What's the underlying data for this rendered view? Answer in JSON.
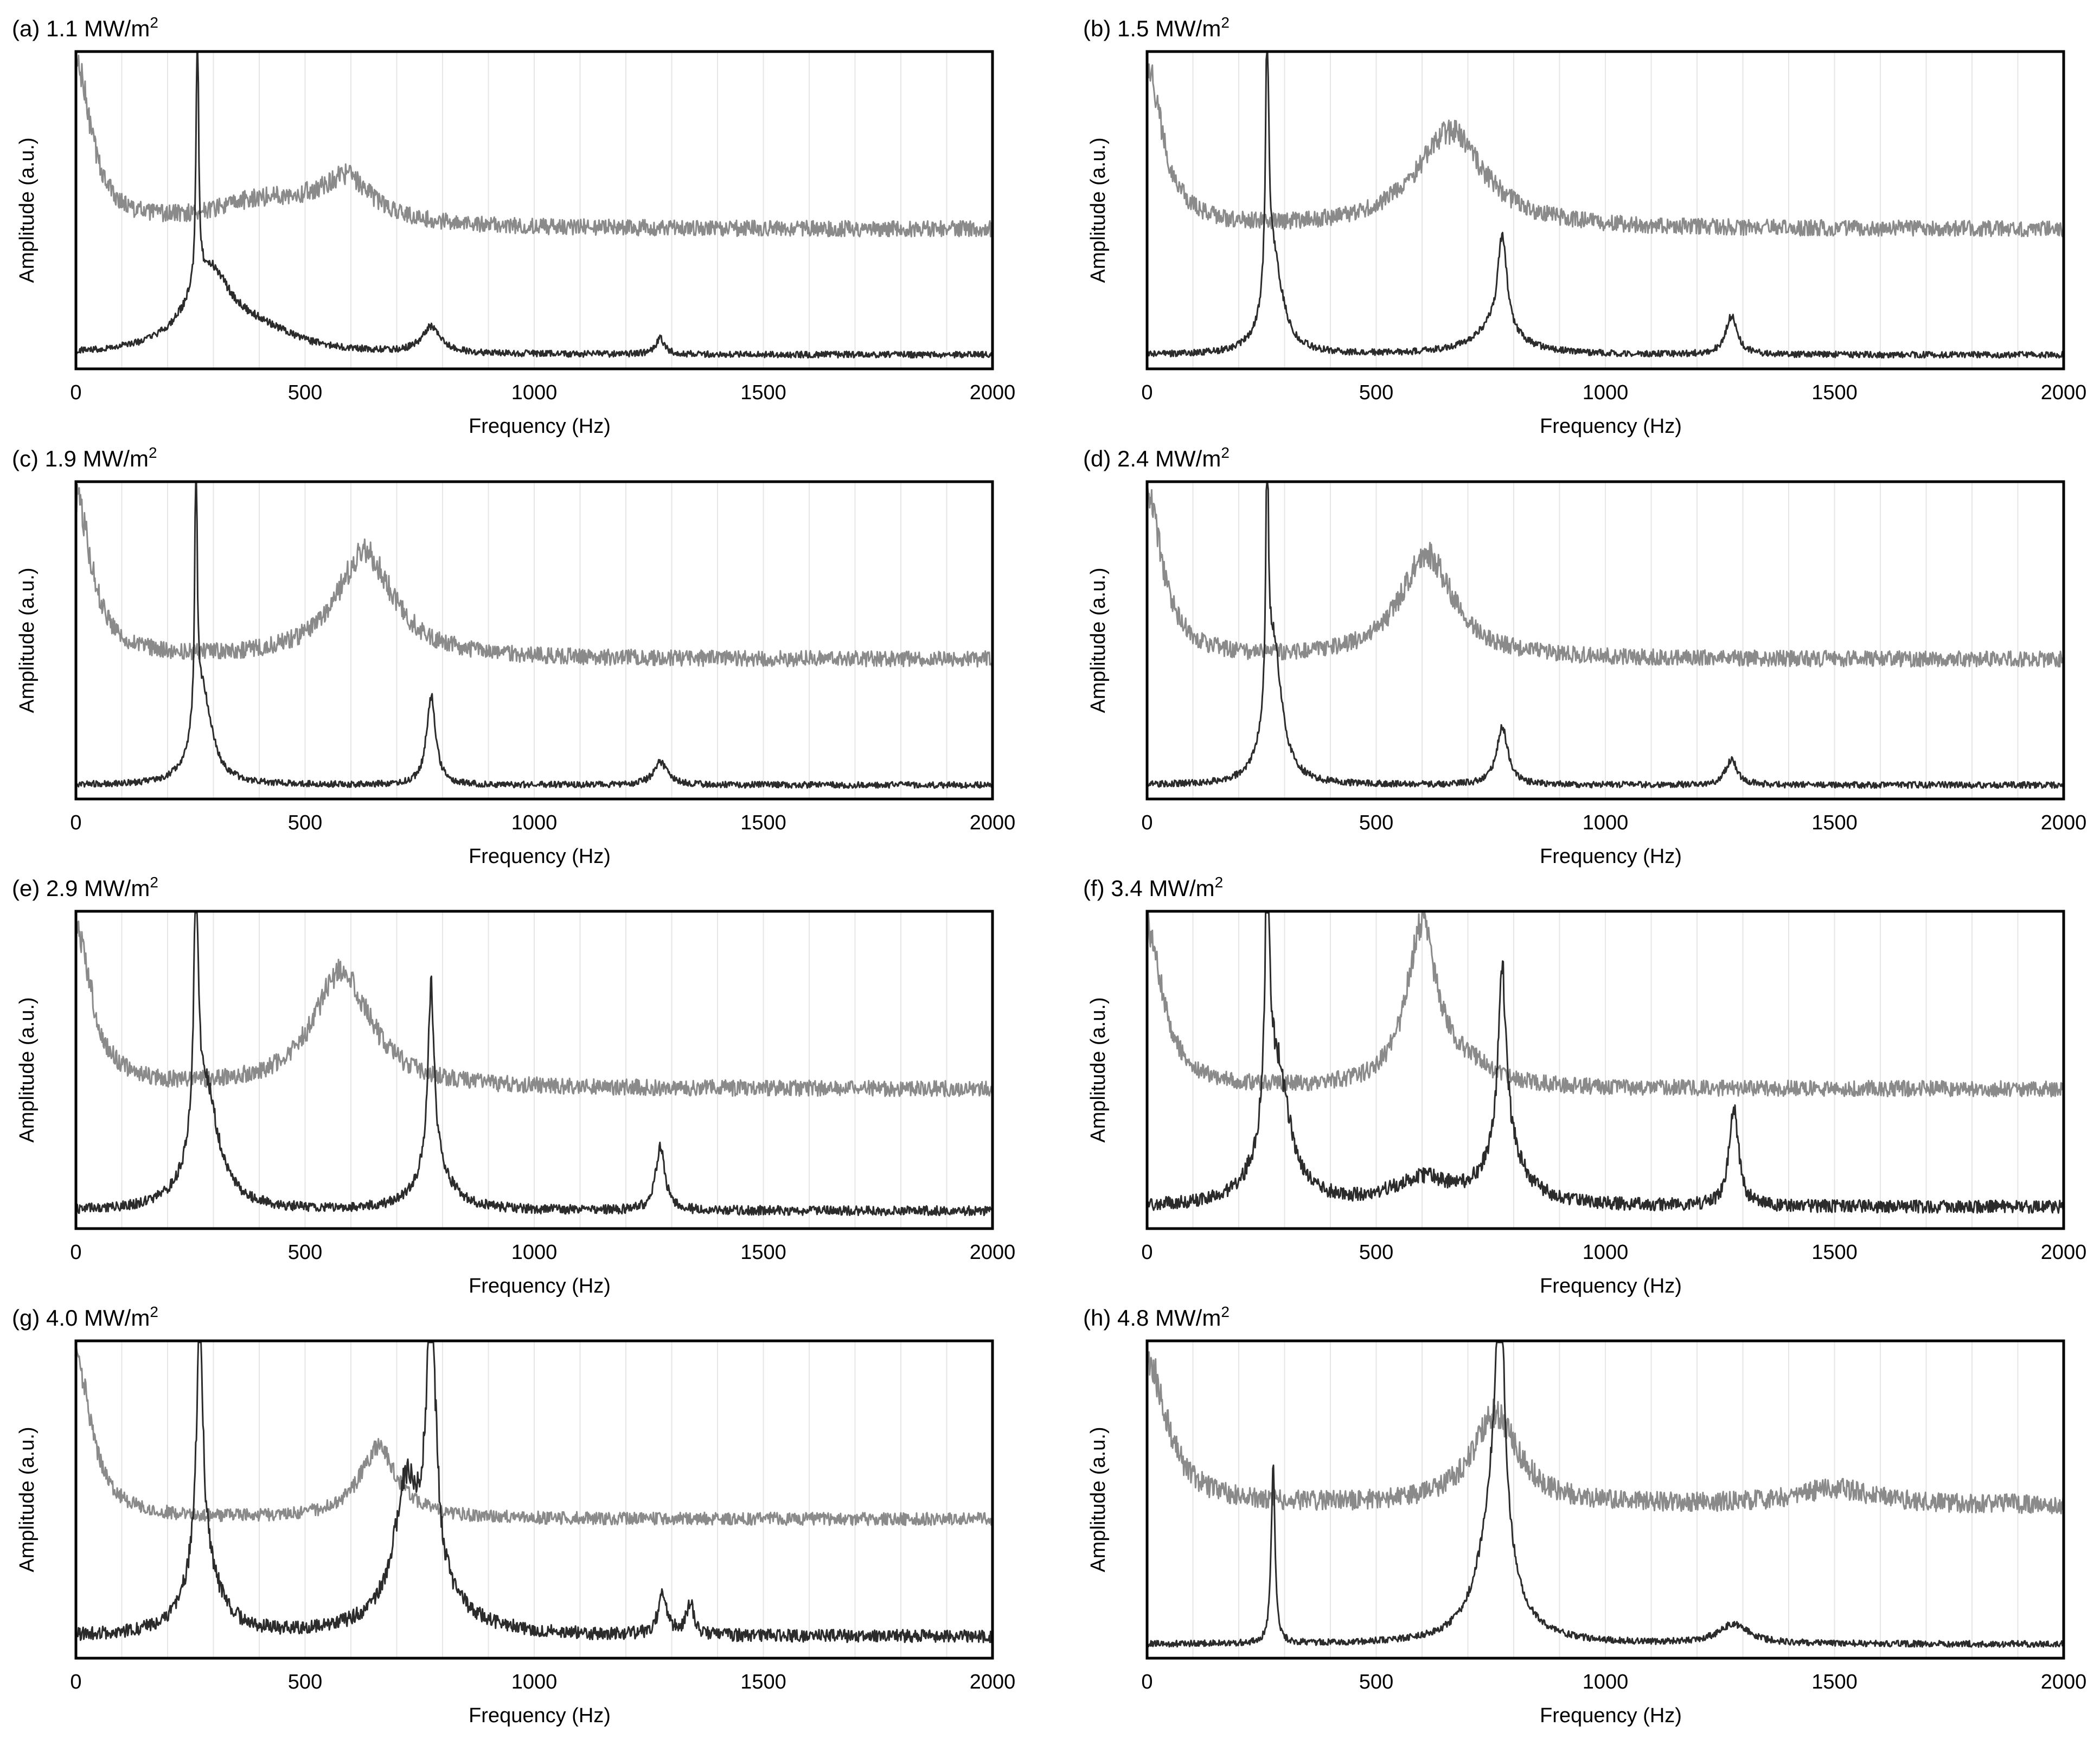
{
  "figure": {
    "description_type": "multi-panel frequency spectra",
    "series_colors": {
      "upper_trace": "#8a8a8a",
      "lower_trace": "#2b2b2b"
    }
  },
  "chart_data": [
    {
      "type": "line",
      "title": "(a) 1.1 MW/m",
      "title_sup": "2",
      "xlabel": "Frequency (Hz)",
      "ylabel": "Amplitude (a.u.)",
      "xlim": [
        0,
        2000
      ],
      "xticks": [
        "0",
        "500",
        "1000",
        "1500",
        "2000"
      ],
      "ylim": [
        0,
        1
      ],
      "series": [
        {
          "name": "upper",
          "color": "#8a8a8a",
          "baseline": 0.43,
          "noise": 0.05,
          "peaks": [
            {
              "f": 0,
              "amp": 0.5,
              "w": 40
            },
            {
              "f": 420,
              "amp": 0.08,
              "w": 150
            },
            {
              "f": 590,
              "amp": 0.13,
              "w": 70
            }
          ]
        },
        {
          "name": "lower",
          "color": "#2b2b2b",
          "baseline": 0.04,
          "noise": 0.02,
          "peaks": [
            {
              "f": 265,
              "amp": 0.9,
              "w": 3
            },
            {
              "f": 290,
              "amp": 0.25,
              "w": 60
            },
            {
              "f": 400,
              "amp": 0.06,
              "w": 100
            },
            {
              "f": 775,
              "amp": 0.08,
              "w": 25
            },
            {
              "f": 1275,
              "amp": 0.05,
              "w": 12
            }
          ]
        }
      ]
    },
    {
      "type": "line",
      "title": "(b) 1.5 MW/m",
      "title_sup": "2",
      "xlabel": "Frequency (Hz)",
      "ylabel": "Amplitude (a.u.)",
      "xlim": [
        0,
        2000
      ],
      "xticks": [
        "0",
        "500",
        "1000",
        "1500",
        "2000"
      ],
      "ylim": [
        0,
        1
      ],
      "series": [
        {
          "name": "upper",
          "color": "#8a8a8a",
          "baseline": 0.43,
          "noise": 0.05,
          "peaks": [
            {
              "f": 0,
              "amp": 0.5,
              "w": 40
            },
            {
              "f": 660,
              "amp": 0.3,
              "w": 90
            }
          ]
        },
        {
          "name": "lower",
          "color": "#2b2b2b",
          "baseline": 0.04,
          "noise": 0.02,
          "peaks": [
            {
              "f": 262,
              "amp": 0.85,
              "w": 4
            },
            {
              "f": 275,
              "amp": 0.3,
              "w": 25
            },
            {
              "f": 775,
              "amp": 0.3,
              "w": 12
            },
            {
              "f": 760,
              "amp": 0.08,
              "w": 60
            },
            {
              "f": 1275,
              "amp": 0.12,
              "w": 15
            }
          ]
        }
      ]
    },
    {
      "type": "line",
      "title": "(c) 1.9 MW/m",
      "title_sup": "2",
      "xlabel": "Frequency (Hz)",
      "ylabel": "Amplitude (a.u.)",
      "xlim": [
        0,
        2000
      ],
      "xticks": [
        "0",
        "500",
        "1000",
        "1500",
        "2000"
      ],
      "ylim": [
        0,
        1
      ],
      "series": [
        {
          "name": "upper",
          "color": "#8a8a8a",
          "baseline": 0.43,
          "noise": 0.05,
          "peaks": [
            {
              "f": 0,
              "amp": 0.5,
              "w": 40
            },
            {
              "f": 630,
              "amp": 0.33,
              "w": 75
            }
          ]
        },
        {
          "name": "lower",
          "color": "#2b2b2b",
          "baseline": 0.04,
          "noise": 0.02,
          "peaks": [
            {
              "f": 262,
              "amp": 0.87,
              "w": 3
            },
            {
              "f": 275,
              "amp": 0.3,
              "w": 25
            },
            {
              "f": 775,
              "amp": 0.28,
              "w": 12
            },
            {
              "f": 1275,
              "amp": 0.07,
              "w": 18
            }
          ]
        }
      ]
    },
    {
      "type": "line",
      "title": "(d) 2.4 MW/m",
      "title_sup": "2",
      "xlabel": "Frequency (Hz)",
      "ylabel": "Amplitude (a.u.)",
      "xlim": [
        0,
        2000
      ],
      "xticks": [
        "0",
        "500",
        "1000",
        "1500",
        "2000"
      ],
      "ylim": [
        0,
        1
      ],
      "series": [
        {
          "name": "upper",
          "color": "#8a8a8a",
          "baseline": 0.43,
          "noise": 0.05,
          "peaks": [
            {
              "f": 0,
              "amp": 0.5,
              "w": 40
            },
            {
              "f": 610,
              "amp": 0.32,
              "w": 70
            }
          ]
        },
        {
          "name": "lower",
          "color": "#2b2b2b",
          "baseline": 0.04,
          "noise": 0.02,
          "peaks": [
            {
              "f": 262,
              "amp": 0.87,
              "w": 3
            },
            {
              "f": 275,
              "amp": 0.45,
              "w": 22
            },
            {
              "f": 775,
              "amp": 0.18,
              "w": 15
            },
            {
              "f": 1275,
              "amp": 0.08,
              "w": 15
            }
          ]
        }
      ]
    },
    {
      "type": "line",
      "title": "(e) 2.9 MW/m",
      "title_sup": "2",
      "xlabel": "Frequency (Hz)",
      "ylabel": "Amplitude (a.u.)",
      "xlim": [
        0,
        2000
      ],
      "xticks": [
        "0",
        "500",
        "1000",
        "1500",
        "2000"
      ],
      "ylim": [
        0,
        1
      ],
      "series": [
        {
          "name": "upper",
          "color": "#8a8a8a",
          "baseline": 0.43,
          "noise": 0.05,
          "peaks": [
            {
              "f": 0,
              "amp": 0.5,
              "w": 40
            },
            {
              "f": 580,
              "amp": 0.36,
              "w": 75
            }
          ]
        },
        {
          "name": "lower",
          "color": "#2b2b2b",
          "baseline": 0.05,
          "noise": 0.03,
          "peaks": [
            {
              "f": 262,
              "amp": 0.83,
              "w": 5
            },
            {
              "f": 280,
              "amp": 0.4,
              "w": 35
            },
            {
              "f": 775,
              "amp": 0.55,
              "w": 8
            },
            {
              "f": 780,
              "amp": 0.15,
              "w": 40
            },
            {
              "f": 1275,
              "amp": 0.2,
              "w": 12
            }
          ]
        }
      ]
    },
    {
      "type": "line",
      "title": "(f) 3.4 MW/m",
      "title_sup": "2",
      "xlabel": "Frequency (Hz)",
      "ylabel": "Amplitude (a.u.)",
      "xlim": [
        0,
        2000
      ],
      "xticks": [
        "0",
        "500",
        "1000",
        "1500",
        "2000"
      ],
      "ylim": [
        0,
        1
      ],
      "series": [
        {
          "name": "upper",
          "color": "#8a8a8a",
          "baseline": 0.43,
          "noise": 0.05,
          "peaks": [
            {
              "f": 0,
              "amp": 0.5,
              "w": 40
            },
            {
              "f": 600,
              "amp": 0.5,
              "w": 40
            },
            {
              "f": 700,
              "amp": 0.05,
              "w": 60
            }
          ]
        },
        {
          "name": "lower",
          "color": "#2b2b2b",
          "baseline": 0.06,
          "noise": 0.04,
          "peaks": [
            {
              "f": 262,
              "amp": 0.85,
              "w": 5
            },
            {
              "f": 280,
              "amp": 0.45,
              "w": 35
            },
            {
              "f": 775,
              "amp": 0.55,
              "w": 10
            },
            {
              "f": 780,
              "amp": 0.18,
              "w": 45
            },
            {
              "f": 1280,
              "amp": 0.32,
              "w": 12
            },
            {
              "f": 600,
              "amp": 0.08,
              "w": 80
            }
          ]
        }
      ]
    },
    {
      "type": "line",
      "title": "(g) 4.0 MW/m",
      "title_sup": "2",
      "xlabel": "Frequency (Hz)",
      "ylabel": "Amplitude (a.u.)",
      "xlim": [
        0,
        2000
      ],
      "xticks": [
        "0",
        "500",
        "1000",
        "1500",
        "2000"
      ],
      "ylim": [
        0,
        1
      ],
      "series": [
        {
          "name": "upper",
          "color": "#8a8a8a",
          "baseline": 0.43,
          "noise": 0.04,
          "peaks": [
            {
              "f": 0,
              "amp": 0.5,
              "w": 40
            },
            {
              "f": 660,
              "amp": 0.22,
              "w": 50
            }
          ]
        },
        {
          "name": "lower",
          "color": "#2b2b2b",
          "baseline": 0.06,
          "noise": 0.04,
          "peaks": [
            {
              "f": 270,
              "amp": 0.75,
              "w": 8
            },
            {
              "f": 275,
              "amp": 0.25,
              "w": 40
            },
            {
              "f": 775,
              "amp": 0.88,
              "w": 12
            },
            {
              "f": 720,
              "amp": 0.35,
              "w": 30
            },
            {
              "f": 760,
              "amp": 0.15,
              "w": 80
            },
            {
              "f": 1280,
              "amp": 0.12,
              "w": 12
            },
            {
              "f": 1340,
              "amp": 0.1,
              "w": 10
            }
          ]
        }
      ]
    },
    {
      "type": "line",
      "title": "(h) 4.8 MW/m",
      "title_sup": "2",
      "xlabel": "Frequency (Hz)",
      "ylabel": "Amplitude (a.u.)",
      "xlim": [
        0,
        2000
      ],
      "xticks": [
        "0",
        "500",
        "1000",
        "1500",
        "2000"
      ],
      "ylim": [
        0,
        1
      ],
      "series": [
        {
          "name": "upper",
          "color": "#8a8a8a",
          "baseline": 0.47,
          "noise": 0.06,
          "peaks": [
            {
              "f": 0,
              "amp": 0.45,
              "w": 50
            },
            {
              "f": 760,
              "amp": 0.28,
              "w": 60
            },
            {
              "f": 1500,
              "amp": 0.05,
              "w": 100
            }
          ]
        },
        {
          "name": "lower",
          "color": "#2b2b2b",
          "baseline": 0.04,
          "noise": 0.02,
          "peaks": [
            {
              "f": 275,
              "amp": 0.55,
              "w": 5
            },
            {
              "f": 770,
              "amp": 0.85,
              "w": 10
            },
            {
              "f": 760,
              "amp": 0.45,
              "w": 40
            },
            {
              "f": 1280,
              "amp": 0.06,
              "w": 40
            }
          ]
        }
      ]
    }
  ]
}
